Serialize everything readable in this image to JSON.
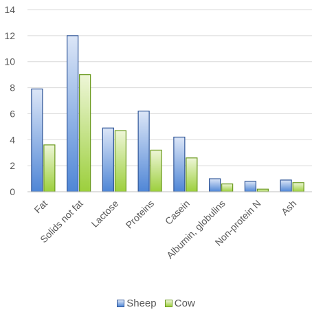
{
  "chart_data": {
    "type": "bar",
    "categories": [
      "Fat",
      "Solids not fat",
      "Lactose",
      "Proteins",
      "Casein",
      "Albumin, globulins",
      "Non-protein N",
      "Ash"
    ],
    "series": [
      {
        "name": "Sheep",
        "values": [
          7.9,
          12.0,
          4.9,
          6.2,
          4.2,
          1.0,
          0.8,
          0.9
        ],
        "fill_light": "#dce6f7",
        "fill_dark": "#4f86d6",
        "stroke": "#2f5597"
      },
      {
        "name": "Cow",
        "values": [
          3.6,
          9.0,
          4.7,
          3.2,
          2.6,
          0.6,
          0.2,
          0.7
        ],
        "fill_light": "#eef6d8",
        "fill_dark": "#9ccf3c",
        "stroke": "#6b9a1f"
      }
    ],
    "ylim": [
      0,
      14
    ],
    "yticks": [
      "0",
      "2",
      "4",
      "6",
      "8",
      "10",
      "12",
      "14"
    ],
    "grid": true,
    "legend_position": "bottom"
  }
}
